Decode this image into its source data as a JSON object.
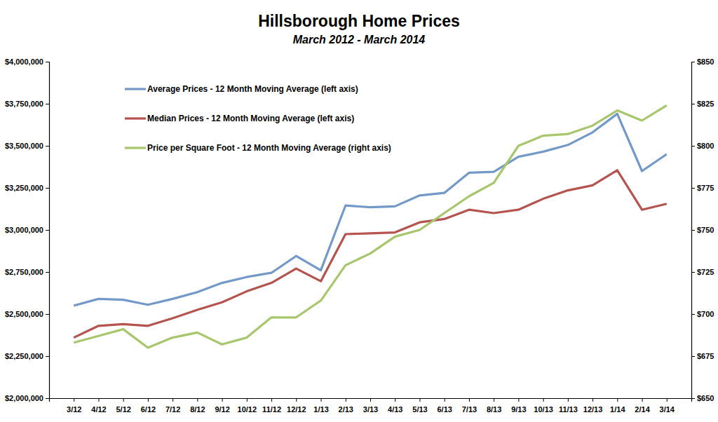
{
  "chart_data": {
    "type": "line",
    "title": "Hillsborough Home Prices",
    "subtitle": "March 2012 - March 2014",
    "categories": [
      "3/12",
      "4/12",
      "5/12",
      "6/12",
      "7/12",
      "8/12",
      "9/12",
      "10/12",
      "11/12",
      "12/12",
      "1/13",
      "2/13",
      "3/13",
      "4/13",
      "5/13",
      "6/13",
      "7/13",
      "8/13",
      "9/13",
      "10/13",
      "11/13",
      "12/13",
      "1/14",
      "2/14",
      "3/14"
    ],
    "series": [
      {
        "name": "Average Prices - 12 Month Moving Average (left axis)",
        "color": "#7399c9",
        "values": [
          2550000,
          2590000,
          2585000,
          2555000,
          2590000,
          2630000,
          2685000,
          2720000,
          2745000,
          2845000,
          2760000,
          3145000,
          3135000,
          3140000,
          3205000,
          3220000,
          3340000,
          3345000,
          3435000,
          3465000,
          3505000,
          3580000,
          3690000,
          3350000,
          3450000
        ]
      },
      {
        "name": "Median Prices - 12 Month Moving Average (left axis)",
        "color": "#b5534f",
        "values": [
          2360000,
          2430000,
          2440000,
          2430000,
          2475000,
          2525000,
          2570000,
          2635000,
          2685000,
          2770000,
          2695000,
          2975000,
          2980000,
          2985000,
          3045000,
          3065000,
          3120000,
          3100000,
          3120000,
          3185000,
          3235000,
          3265000,
          3355000,
          3120000,
          3155000
        ]
      },
      {
        "name": "Price per Square Foot - 12 Month Moving Average (right axis)",
        "color": "#a8c66c",
        "axis": "y2",
        "values": [
          683,
          687,
          691,
          680,
          686,
          689,
          682,
          686,
          698,
          698,
          708,
          729,
          736,
          746,
          750,
          760,
          770,
          778,
          800,
          806,
          807,
          812,
          821,
          815,
          824
        ]
      }
    ],
    "ylim": [
      2000000,
      4000000
    ],
    "yticks": [
      {
        "value": 2000000,
        "label": "$2,000,000"
      },
      {
        "value": 2250000,
        "label": "$2,250,000"
      },
      {
        "value": 2500000,
        "label": "$2,500,000"
      },
      {
        "value": 2750000,
        "label": "$2,750,000"
      },
      {
        "value": 3000000,
        "label": "$3,000,000"
      },
      {
        "value": 3250000,
        "label": "$3,250,000"
      },
      {
        "value": 3500000,
        "label": "$3,500,000"
      },
      {
        "value": 3750000,
        "label": "$3,750,000"
      },
      {
        "value": 4000000,
        "label": "$4,000,000"
      }
    ],
    "y2lim": [
      650,
      850
    ],
    "y2ticks": [
      {
        "value": 650,
        "label": "$650"
      },
      {
        "value": 675,
        "label": "$675"
      },
      {
        "value": 700,
        "label": "$700"
      },
      {
        "value": 725,
        "label": "$725"
      },
      {
        "value": 750,
        "label": "$750"
      },
      {
        "value": 775,
        "label": "$775"
      },
      {
        "value": 800,
        "label": "$800"
      },
      {
        "value": 825,
        "label": "$825"
      },
      {
        "value": 850,
        "label": "$850"
      }
    ],
    "grid": false,
    "legend": "upper left"
  }
}
